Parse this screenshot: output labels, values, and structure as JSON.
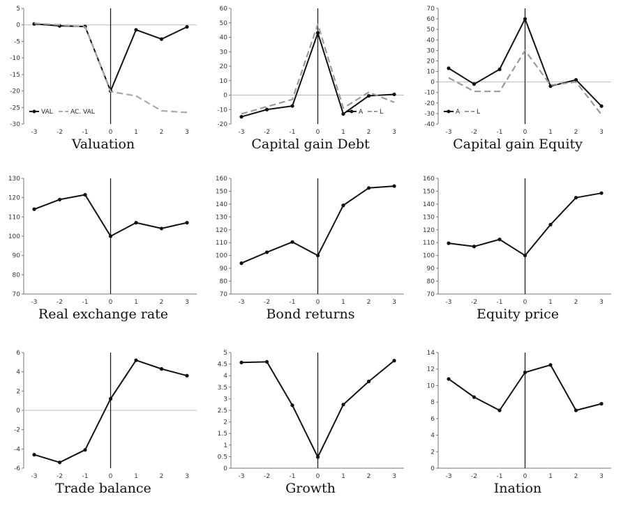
{
  "chart_data": [
    {
      "type": "line",
      "title": "Valuation",
      "categories": [
        "-3",
        "-2",
        "-1",
        "0",
        "1",
        "2",
        "3"
      ],
      "ylim": [
        -30,
        5
      ],
      "yticks": [
        "5",
        "0",
        "-5",
        "-10",
        "-15",
        "-20",
        "-25",
        "-30"
      ],
      "zero_line": true,
      "legend": "bottom-left",
      "series": [
        {
          "name": "VAL",
          "values": [
            0.3,
            -0.3,
            -0.5,
            -20,
            -1.5,
            -4.3,
            -0.6
          ],
          "color": "#111111",
          "dash": "solid",
          "markers": true
        },
        {
          "name": "AC. VAL",
          "values": [
            0.5,
            0,
            -0.6,
            -20.2,
            -21.5,
            -26,
            -26.5
          ],
          "color": "#aaaaaa",
          "dash": "dashed",
          "markers": false
        }
      ]
    },
    {
      "type": "line",
      "title": "Capital gain Debt",
      "categories": [
        "-3",
        "-2",
        "-1",
        "0",
        "1",
        "2",
        "3"
      ],
      "ylim": [
        -20,
        60
      ],
      "yticks": [
        "60",
        "50",
        "40",
        "30",
        "20",
        "10",
        "0",
        "-10",
        "-20"
      ],
      "zero_line": true,
      "legend": "bottom-right",
      "series": [
        {
          "name": "A",
          "values": [
            -15,
            -10,
            -7.5,
            43,
            -13,
            -0.5,
            0.5
          ],
          "color": "#111111",
          "dash": "solid",
          "markers": true
        },
        {
          "name": "L",
          "values": [
            -13,
            -8,
            -3,
            49,
            -9,
            2,
            -5
          ],
          "color": "#999999",
          "dash": "dashed",
          "markers": false
        }
      ]
    },
    {
      "type": "line",
      "title": "Capital gain Equity",
      "categories": [
        "-3",
        "-2",
        "-1",
        "0",
        "1",
        "2",
        "3"
      ],
      "ylim": [
        -40,
        70
      ],
      "yticks": [
        "70",
        "60",
        "50",
        "40",
        "30",
        "20",
        "10",
        "0",
        "-10",
        "-20",
        "-30",
        "-40"
      ],
      "zero_line": true,
      "legend": "bottom-left",
      "series": [
        {
          "name": "A",
          "values": [
            13,
            -2,
            12,
            60,
            -4,
            2,
            -23
          ],
          "color": "#111111",
          "dash": "solid",
          "markers": true
        },
        {
          "name": "L",
          "values": [
            4,
            -9,
            -9,
            30,
            -3,
            0,
            -31
          ],
          "color": "#999999",
          "dash": "dashed",
          "markers": false
        }
      ]
    },
    {
      "type": "line",
      "title": "Real exchange rate",
      "categories": [
        "-3",
        "-2",
        "-1",
        "0",
        "1",
        "2",
        "3"
      ],
      "ylim": [
        70,
        130
      ],
      "yticks": [
        "130",
        "120",
        "110",
        "100",
        "90",
        "80",
        "70"
      ],
      "zero_line": false,
      "series": [
        {
          "values": [
            114,
            119,
            121.5,
            100,
            107,
            104,
            107
          ],
          "color": "#111111",
          "dash": "solid",
          "markers": true
        }
      ]
    },
    {
      "type": "line",
      "title": "Bond returns",
      "categories": [
        "-3",
        "-2",
        "-1",
        "0",
        "1",
        "2",
        "3"
      ],
      "ylim": [
        70,
        160
      ],
      "yticks": [
        "160",
        "150",
        "140",
        "130",
        "120",
        "110",
        "100",
        "90",
        "80",
        "70"
      ],
      "zero_line": false,
      "series": [
        {
          "values": [
            94,
            102.5,
            110.5,
            100,
            139,
            152.5,
            154
          ],
          "color": "#111111",
          "dash": "solid",
          "markers": true
        }
      ]
    },
    {
      "type": "line",
      "title": "Equity price",
      "categories": [
        "-3",
        "-2",
        "-1",
        "0",
        "1",
        "2",
        "3"
      ],
      "ylim": [
        70,
        160
      ],
      "yticks": [
        "160",
        "150",
        "140",
        "130",
        "120",
        "110",
        "100",
        "90",
        "80",
        "70"
      ],
      "zero_line": false,
      "series": [
        {
          "values": [
            109.5,
            107,
            112.5,
            100,
            124,
            145,
            148.5
          ],
          "color": "#111111",
          "dash": "solid",
          "markers": true
        }
      ]
    },
    {
      "type": "line",
      "title": "Trade balance",
      "categories": [
        "-3",
        "-2",
        "-1",
        "0",
        "1",
        "2",
        "3"
      ],
      "ylim": [
        -6,
        6
      ],
      "yticks": [
        "6",
        "4",
        "2",
        "0",
        "-2",
        "-4",
        "-6"
      ],
      "zero_line": true,
      "series": [
        {
          "values": [
            -4.6,
            -5.4,
            -4.1,
            1.2,
            5.2,
            4.3,
            3.6
          ],
          "color": "#111111",
          "dash": "solid",
          "markers": true
        }
      ]
    },
    {
      "type": "line",
      "title": "Growth",
      "categories": [
        "-3",
        "-2",
        "-1",
        "0",
        "1",
        "2",
        "3"
      ],
      "ylim": [
        0,
        5
      ],
      "yticks": [
        "5",
        "4.5",
        "4",
        "3.5",
        "3",
        "2.5",
        "2",
        "1.5",
        "1",
        "0.5",
        "0"
      ],
      "zero_line": false,
      "series": [
        {
          "values": [
            4.57,
            4.6,
            2.72,
            0.48,
            2.75,
            3.75,
            4.65
          ],
          "color": "#111111",
          "dash": "solid",
          "markers": true
        }
      ]
    },
    {
      "type": "line",
      "title": "Ination",
      "categories": [
        "-3",
        "-2",
        "-1",
        "0",
        "1",
        "2",
        "3"
      ],
      "ylim": [
        0,
        14
      ],
      "yticks": [
        "14",
        "12",
        "10",
        "8",
        "6",
        "4",
        "2",
        "0"
      ],
      "zero_line": false,
      "series": [
        {
          "values": [
            10.8,
            8.6,
            7,
            11.6,
            12.5,
            7,
            7.8
          ],
          "color": "#111111",
          "dash": "solid",
          "markers": true
        }
      ]
    }
  ]
}
